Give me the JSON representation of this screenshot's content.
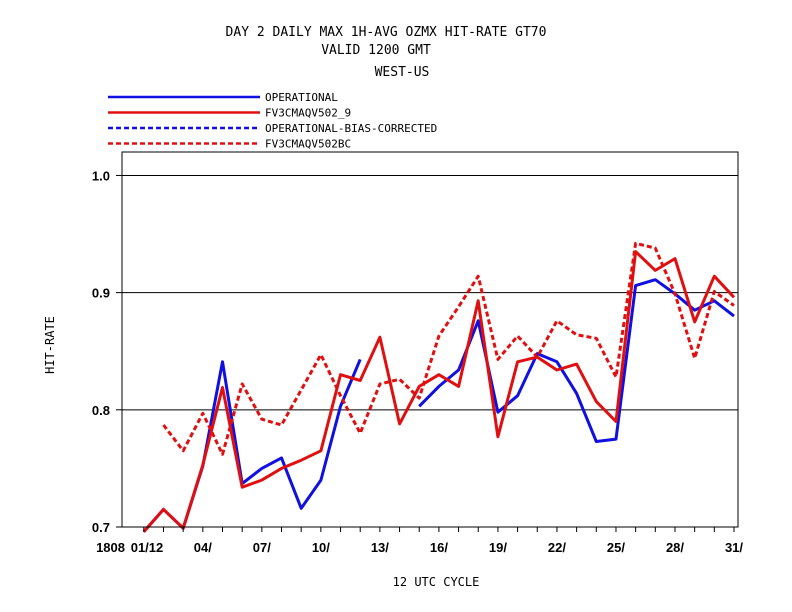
{
  "chart_data": {
    "type": "line",
    "title_lines": [
      "DAY 2 DAILY MAX   1H-AVG OZMX HIT-RATE GT70",
      "VALID 1200 GMT",
      "WEST-US"
    ],
    "xlabel": "12 UTC CYCLE",
    "ylabel": "HIT-RATE",
    "ylim": [
      0.7,
      1.02
    ],
    "xlim": [
      0,
      31
    ],
    "yticks": [
      0.7,
      0.8,
      0.9,
      1.0
    ],
    "ytick_labels": [
      "0.7",
      "0.8",
      "0.9",
      "1.0"
    ],
    "xtick_labels": [
      {
        "day": 1,
        "label": "1808"
      },
      {
        "day": 2,
        "label": "01/12"
      },
      {
        "day": 4,
        "label": "04/"
      },
      {
        "day": 7,
        "label": "07/"
      },
      {
        "day": 10,
        "label": "10/"
      },
      {
        "day": 13,
        "label": "13/"
      },
      {
        "day": 16,
        "label": "16/"
      },
      {
        "day": 19,
        "label": "19/"
      },
      {
        "day": 22,
        "label": "22/"
      },
      {
        "day": 25,
        "label": "25/"
      },
      {
        "day": 28,
        "label": "28/"
      },
      {
        "day": 31,
        "label": "31/"
      }
    ],
    "gridlines": [
      0.8,
      0.9,
      1.0
    ],
    "legend_position": "top-left, above plot",
    "series": [
      {
        "name": "OPERATIONAL",
        "color": "#1010e0",
        "dash": "solid",
        "x": [
          1,
          2,
          3,
          4,
          5,
          6,
          7,
          8,
          9,
          10,
          11,
          12,
          13,
          14,
          15,
          16,
          17,
          18,
          19,
          20,
          21,
          22,
          23,
          24,
          25,
          26,
          27,
          28,
          29,
          30,
          31
        ],
        "values": [
          0.69,
          0.715,
          0.699,
          0.752,
          0.841,
          0.737,
          0.75,
          0.759,
          0.716,
          0.74,
          0.803,
          0.843,
          null,
          null,
          0.803,
          0.82,
          0.834,
          0.876,
          0.798,
          0.812,
          0.848,
          0.841,
          0.814,
          0.773,
          0.775,
          0.906,
          0.911,
          0.899,
          0.885,
          0.893,
          0.88
        ]
      },
      {
        "name": "FV3CMAQV502_9",
        "color": "#e01010",
        "dash": "solid",
        "x": [
          1,
          2,
          3,
          4,
          5,
          6,
          7,
          8,
          9,
          10,
          11,
          12,
          13,
          14,
          15,
          16,
          17,
          18,
          19,
          20,
          21,
          22,
          23,
          24,
          25,
          26,
          27,
          28,
          29,
          30,
          31
        ],
        "values": [
          0.69,
          0.715,
          0.699,
          0.753,
          0.819,
          0.734,
          0.74,
          0.75,
          0.757,
          0.765,
          0.83,
          0.825,
          0.862,
          0.788,
          0.82,
          0.83,
          0.82,
          0.893,
          0.777,
          0.841,
          0.845,
          0.834,
          0.839,
          0.807,
          0.79,
          0.935,
          0.919,
          0.929,
          0.875,
          0.914,
          0.896
        ]
      },
      {
        "name": "OPERATIONAL-BIAS-CORRECTED",
        "color": "#1010e0",
        "dash": "dashed",
        "x": [],
        "values": []
      },
      {
        "name": "FV3CMAQV502BC",
        "color": "#e01010",
        "dash": "dashed",
        "x": [
          2,
          3,
          4,
          5,
          6,
          7,
          8,
          9,
          10,
          11,
          12,
          13,
          14,
          15,
          16,
          17,
          18,
          19,
          20,
          21,
          22,
          23,
          24,
          25,
          26,
          27,
          28,
          29,
          30,
          31
        ],
        "values": [
          0.787,
          0.765,
          0.797,
          0.762,
          0.822,
          0.792,
          0.787,
          0.817,
          0.847,
          0.812,
          0.78,
          0.822,
          0.826,
          0.81,
          0.863,
          0.888,
          0.914,
          0.843,
          0.863,
          0.845,
          0.876,
          0.864,
          0.861,
          0.828,
          0.942,
          0.938,
          0.899,
          0.844,
          0.901,
          0.889
        ]
      }
    ]
  }
}
